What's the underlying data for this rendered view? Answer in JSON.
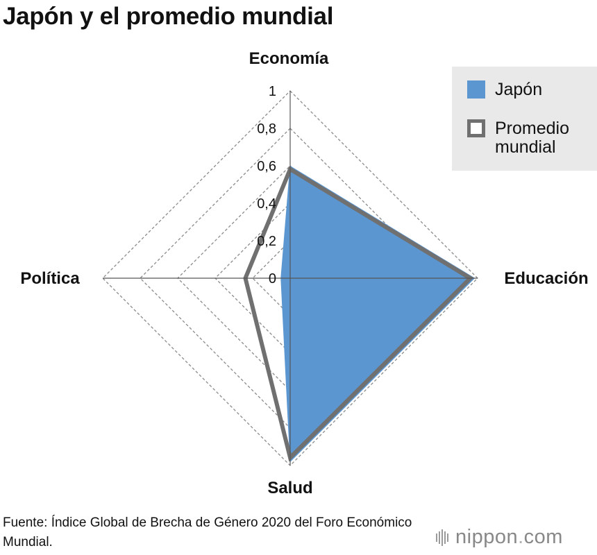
{
  "title": "Japón y el promedio mundial",
  "chart_data": {
    "type": "radar",
    "axes": [
      "Economía",
      "Educación",
      "Salud",
      "Política"
    ],
    "range": [
      0,
      1
    ],
    "ticks": [
      "0",
      "0,2",
      "0,4",
      "0,6",
      "0,8",
      "1"
    ],
    "tick_values": [
      0,
      0.2,
      0.4,
      0.6,
      0.8,
      1
    ],
    "series": [
      {
        "name": "Japón",
        "values": [
          0.598,
          0.983,
          0.979,
          0.049
        ],
        "color": "#5b96d1",
        "style": "filled"
      },
      {
        "name": "Promedio mundial",
        "values": [
          0.582,
          0.961,
          0.958,
          0.239
        ],
        "color": "#707070",
        "style": "outline"
      }
    ]
  },
  "legend": {
    "items": [
      "Japón",
      "Promedio mundial"
    ]
  },
  "source": "Fuente: Índice Global de Brecha de Género 2020 del Foro Económico Mundial.",
  "logo": {
    "brand": "nippon",
    "dot": ".",
    "suffix": "com"
  }
}
